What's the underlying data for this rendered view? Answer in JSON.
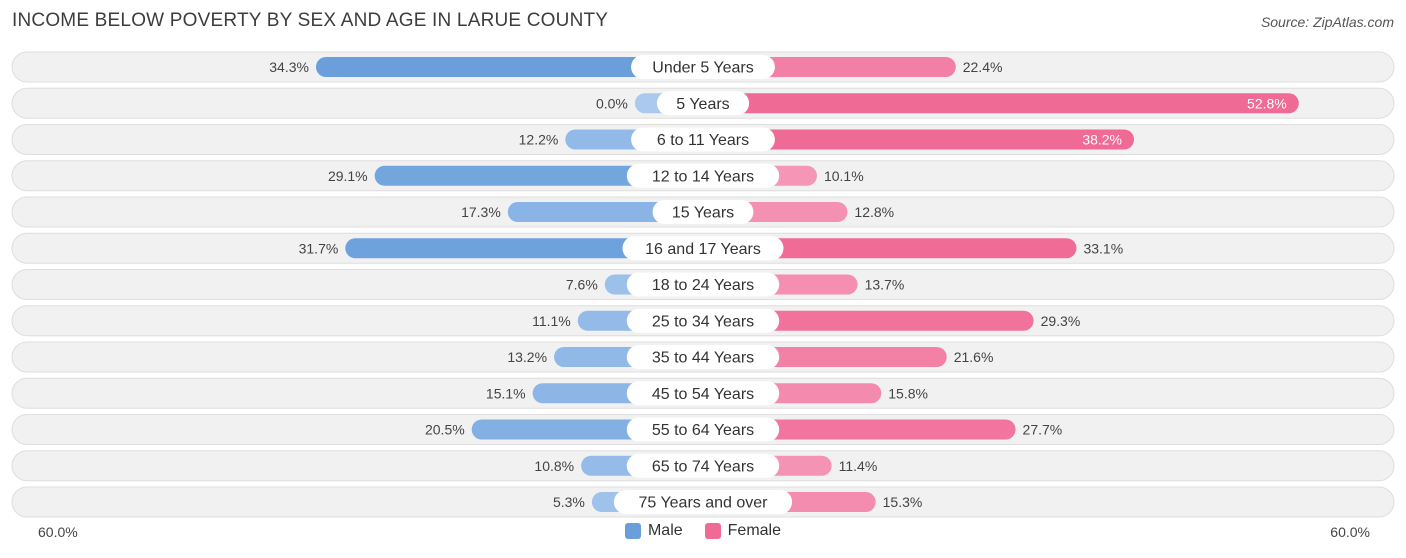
{
  "title": "INCOME BELOW POVERTY BY SEX AND AGE IN LARUE COUNTY",
  "source": "Source: ZipAtlas.com",
  "axis": {
    "left_label": "60.0%",
    "right_label": "60.0%"
  },
  "legend": {
    "male_label": "Male",
    "female_label": "Female"
  },
  "colors": {
    "male_strong": "#6a9fdc",
    "male_light": "#a9c9ee",
    "female_strong": "#f06a96",
    "female_light": "#f7a8c3",
    "row_bg": "#f1f1f1",
    "row_border": "#dedede"
  },
  "chart_data": {
    "type": "bar",
    "orientation": "horizontal-diverging",
    "title": "INCOME BELOW POVERTY BY SEX AND AGE IN LARUE COUNTY",
    "xlim": [
      -60,
      60
    ],
    "categories": [
      "Under 5 Years",
      "5 Years",
      "6 to 11 Years",
      "12 to 14 Years",
      "15 Years",
      "16 and 17 Years",
      "18 to 24 Years",
      "25 to 34 Years",
      "35 to 44 Years",
      "45 to 54 Years",
      "55 to 64 Years",
      "65 to 74 Years",
      "75 Years and over"
    ],
    "series": [
      {
        "name": "Male",
        "values": [
          34.3,
          0.0,
          12.2,
          29.1,
          17.3,
          31.7,
          7.6,
          11.1,
          13.2,
          15.1,
          20.5,
          10.8,
          5.3
        ],
        "labels": [
          "34.3%",
          "0.0%",
          "12.2%",
          "29.1%",
          "17.3%",
          "31.7%",
          "7.6%",
          "11.1%",
          "13.2%",
          "15.1%",
          "20.5%",
          "10.8%",
          "5.3%"
        ]
      },
      {
        "name": "Female",
        "values": [
          22.4,
          52.8,
          38.2,
          10.1,
          12.8,
          33.1,
          13.7,
          29.3,
          21.6,
          15.8,
          27.7,
          11.4,
          15.3
        ],
        "labels": [
          "22.4%",
          "52.8%",
          "38.2%",
          "10.1%",
          "12.8%",
          "33.1%",
          "13.7%",
          "29.3%",
          "21.6%",
          "15.8%",
          "27.7%",
          "11.4%",
          "15.3%"
        ]
      }
    ]
  }
}
